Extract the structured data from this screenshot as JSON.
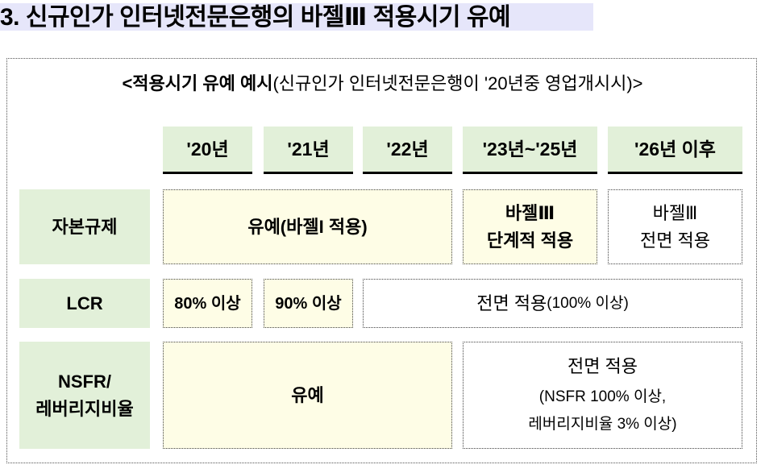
{
  "title": "3. 신규인가 인터넷전문은행의 바젤Ⅲ 적용시기 유예",
  "subtitle": {
    "bold": "<적용시기 유예 예시",
    "normal": "(신규인가 인터넷전문은행이 '20년중 영업개시시)>"
  },
  "columns": [
    "'20년",
    "'21년",
    "'22년",
    "'23년~'25년",
    "'26년 이후"
  ],
  "rows": {
    "capital": {
      "label": "자본규제",
      "grace": "유예(바젤I 적용)",
      "phased": [
        "바젤Ⅲ",
        "단계적 적용"
      ],
      "full": [
        "바젤Ⅲ",
        "전면 적용"
      ]
    },
    "lcr": {
      "label": "LCR",
      "y2020": "80% 이상",
      "y2021": "90% 이상",
      "full_main": "전면 적용",
      "full_note": "(100% 이상)"
    },
    "nsfr": {
      "label": [
        "NSFR/",
        "레버리지비율"
      ],
      "grace": "유예",
      "full": [
        "전면 적용",
        "(NSFR 100% 이상,",
        "레버리지비율 3% 이상)"
      ]
    }
  },
  "colors": {
    "title_highlight": "#e6e6fa",
    "header_bg": "#e2f0d9",
    "grace_bg": "#fefde6"
  }
}
